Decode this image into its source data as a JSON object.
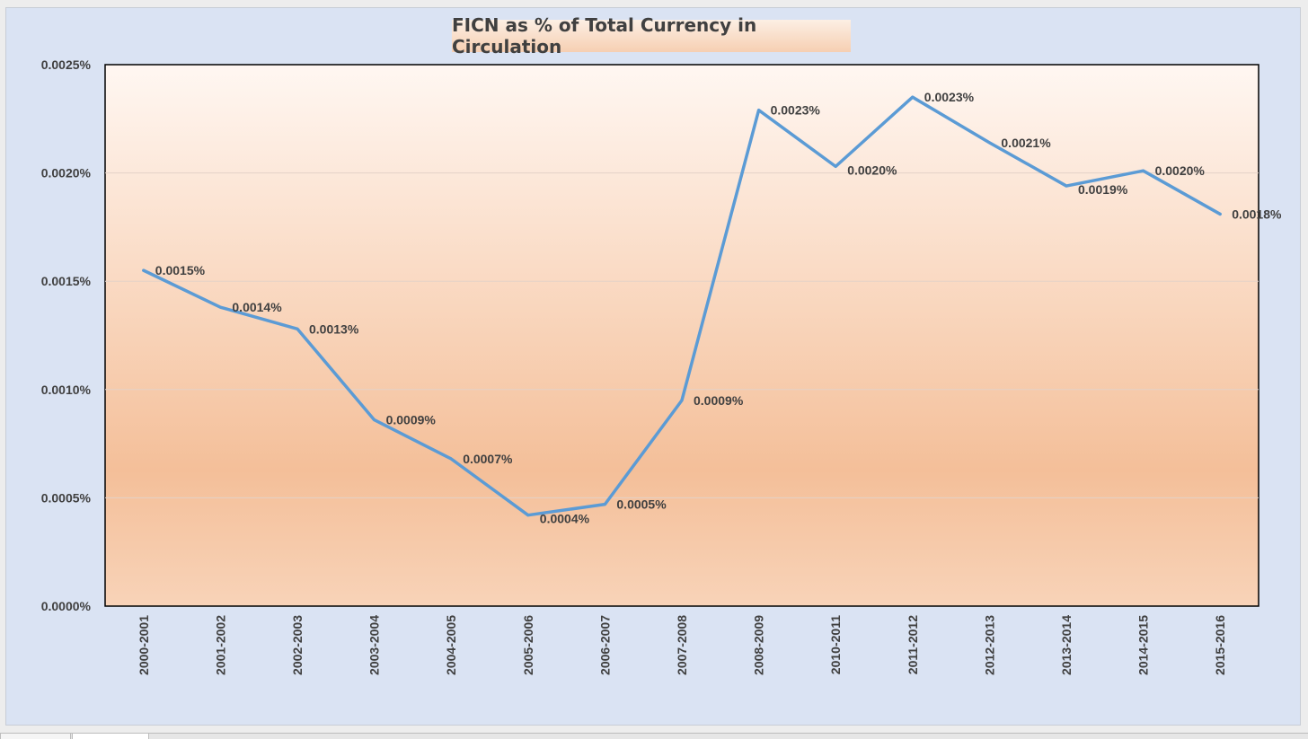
{
  "chart_data": {
    "type": "line",
    "title": "FICN as % of Total Currency in Circulation",
    "xlabel": "",
    "ylabel": "",
    "categories": [
      "2000-2001",
      "2001-2002",
      "2002-2003",
      "2003-2004",
      "2004-2005",
      "2005-2006",
      "2006-2007",
      "2007-2008",
      "2008-2009",
      "2010-2011",
      "2011-2012",
      "2012-2013",
      "2013-2014",
      "2014-2015",
      "2015-2016"
    ],
    "series": [
      {
        "values": [
          0.00155,
          0.00138,
          0.00128,
          0.00086,
          0.00068,
          0.00042,
          0.00047,
          0.00095,
          0.00229,
          0.00203,
          0.00235,
          0.00214,
          0.00194,
          0.00201,
          0.00181
        ],
        "labels": [
          "0.0015%",
          "0.0014%",
          "0.0013%",
          "0.0009%",
          "0.0007%",
          "0.0004%",
          "0.0005%",
          "0.0009%",
          "0.0023%",
          "0.0020%",
          "0.0023%",
          "0.0021%",
          "0.0019%",
          "0.0020%",
          "0.0018%"
        ],
        "color": "#5b9bd5"
      }
    ],
    "ylim": [
      0,
      0.0025
    ],
    "y_ticks": [
      0,
      0.0005,
      0.001,
      0.0015,
      0.002,
      0.0025
    ],
    "y_tick_labels": [
      "0.0000%",
      "0.0005%",
      "0.0010%",
      "0.0015%",
      "0.0020%",
      "0.0025%"
    ],
    "grid": true,
    "legend": "none"
  }
}
